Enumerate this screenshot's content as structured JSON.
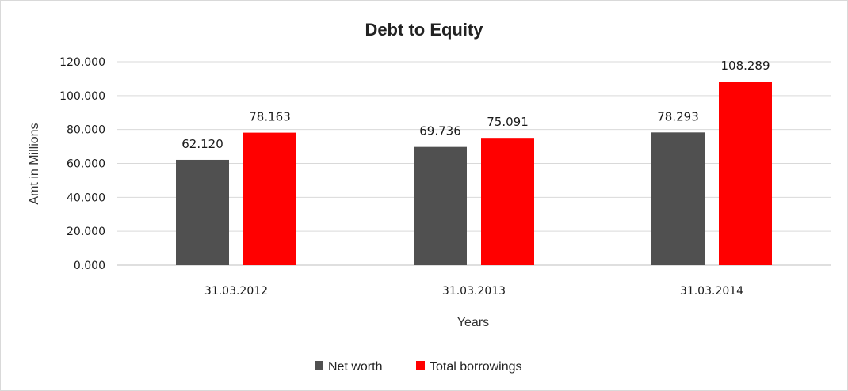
{
  "chart_data": {
    "type": "bar",
    "title": "Debt to Equity",
    "xlabel": "Years",
    "ylabel": "Amt in Millions",
    "categories": [
      "31.03.2012",
      "31.03.2013",
      "31.03.2014"
    ],
    "series": [
      {
        "name": "Net worth",
        "values": [
          62.12,
          69.736,
          78.293
        ],
        "labels": [
          "62.120",
          "69.736",
          "78.293"
        ],
        "color": "#505050"
      },
      {
        "name": "Total borrowings",
        "values": [
          78.163,
          75.091,
          108.289
        ],
        "labels": [
          "78.163",
          "75.091",
          "108.289"
        ],
        "color": "#ff0000"
      }
    ],
    "ylim": [
      0,
      120
    ],
    "yticks": [
      0,
      20,
      40,
      60,
      80,
      100,
      120
    ],
    "ytick_labels": [
      "0.000",
      "20.000",
      "40.000",
      "60.000",
      "80.000",
      "100.000",
      "120.000"
    ],
    "grid": true,
    "legend_position": "bottom"
  }
}
